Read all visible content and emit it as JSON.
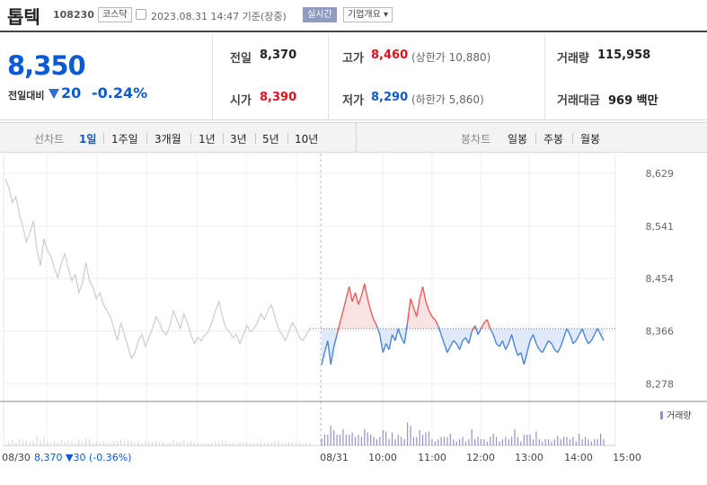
{
  "header": {
    "name": "톱텍",
    "code": "108230",
    "market": "코스닥",
    "time": "2023.08.31 14:47  기준(장중)",
    "realtime": "실시간",
    "overview": "기업개요 ▾"
  },
  "quote": {
    "price": "8,350",
    "compare_label": "전일대비",
    "change": "20",
    "change_pct": "-0.24%",
    "direction": "down",
    "prev_label": "전일",
    "prev_value": "8,370",
    "open_label": "시가",
    "open_value": "8,390",
    "high_label": "고가",
    "high_value": "8,460",
    "upper_limit": "(상한가 10,880)",
    "low_label": "저가",
    "low_value": "8,290",
    "lower_limit": "(하한가 5,860)",
    "volume_label": "거래량",
    "volume_value": "115,958",
    "amount_label": "거래대금",
    "amount_value": "969 백만"
  },
  "toolbar": {
    "line_label": "선차트",
    "periods": [
      "1일",
      "1주일",
      "3개월",
      "1년",
      "3년",
      "5년",
      "10년"
    ],
    "active_period": "1일",
    "candle_label": "봉차트",
    "candles": [
      "일봉",
      "주봉",
      "월봉"
    ]
  },
  "colors": {
    "up": "#e0101a",
    "down": "#0a5bd3",
    "line_up": "#f05b5b",
    "line_down": "#4a86d8",
    "prev_day_line": "#cccccc",
    "fill_up": "#fbe3e3",
    "fill_down": "#dfe9f7"
  },
  "chart_data": {
    "type": "line",
    "ylim": [
      8250,
      8650
    ],
    "y_ticks": [
      8629,
      8541,
      8454,
      8366,
      8278
    ],
    "y_tick_labels": [
      "8,629",
      "8,541",
      "8,454",
      "8,366",
      "8,278"
    ],
    "x_tick_labels": [
      "08/30",
      "08/31",
      "10:00",
      "11:00",
      "12:00",
      "13:00",
      "14:00",
      "15:00"
    ],
    "baseline": 8370,
    "volume_legend": "거래량",
    "prev_day_summary": {
      "date": "08/30",
      "close": "8,370",
      "change": "▼30",
      "pct": "(-0.36%)"
    },
    "series": [
      {
        "date": "08/30",
        "values": [
          8620,
          8605,
          8580,
          8590,
          8560,
          8540,
          8515,
          8530,
          8550,
          8500,
          8475,
          8520,
          8500,
          8490,
          8470,
          8455,
          8480,
          8495,
          8470,
          8450,
          8460,
          8430,
          8445,
          8480,
          8450,
          8440,
          8420,
          8430,
          8410,
          8400,
          8390,
          8370,
          8350,
          8380,
          8360,
          8340,
          8320,
          8330,
          8350,
          8360,
          8340,
          8355,
          8370,
          8390,
          8380,
          8365,
          8360,
          8375,
          8400,
          8385,
          8370,
          8395,
          8380,
          8360,
          8345,
          8355,
          8350,
          8360,
          8365,
          8380,
          8400,
          8415,
          8390,
          8370,
          8365,
          8355,
          8360,
          8345,
          8360,
          8375,
          8365,
          8370,
          8380,
          8395,
          8385,
          8400,
          8410,
          8390,
          8370,
          8360,
          8350,
          8365,
          8380,
          8370,
          8355,
          8350,
          8360,
          8370
        ]
      },
      {
        "date": "08/31",
        "values": [
          8310,
          8330,
          8350,
          8310,
          8340,
          8360,
          8380,
          8400,
          8420,
          8440,
          8415,
          8430,
          8410,
          8425,
          8445,
          8420,
          8400,
          8385,
          8375,
          8360,
          8330,
          8345,
          8335,
          8360,
          8350,
          8370,
          8355,
          8345,
          8380,
          8420,
          8405,
          8390,
          8420,
          8440,
          8415,
          8400,
          8390,
          8385,
          8375,
          8360,
          8345,
          8330,
          8340,
          8350,
          8345,
          8335,
          8350,
          8355,
          8345,
          8365,
          8375,
          8360,
          8370,
          8380,
          8385,
          8370,
          8360,
          8345,
          8340,
          8350,
          8335,
          8345,
          8360,
          8340,
          8325,
          8330,
          8310,
          8330,
          8350,
          8360,
          8345,
          8335,
          8330,
          8340,
          8350,
          8345,
          8335,
          8330,
          8340,
          8355,
          8370,
          8360,
          8345,
          8350,
          8360,
          8370,
          8355,
          8345,
          8350,
          8360,
          8370,
          8360,
          8350
        ]
      }
    ]
  }
}
